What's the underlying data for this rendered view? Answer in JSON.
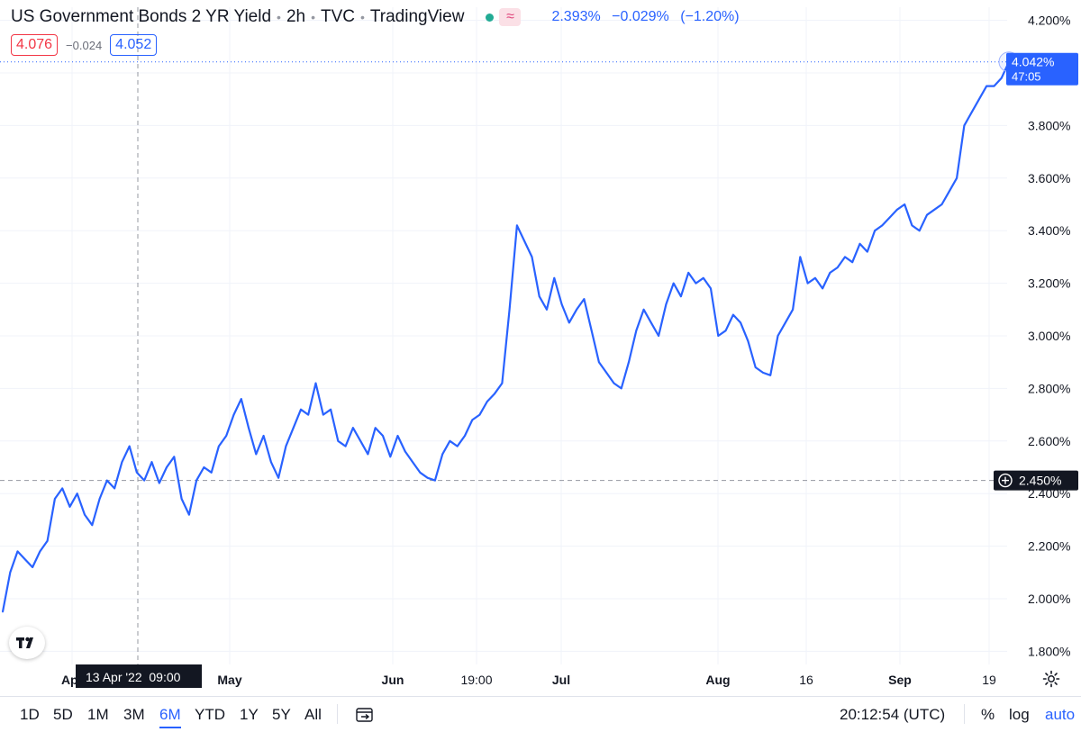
{
  "header": {
    "title": "US Government Bonds 2 YR Yield",
    "interval": "2h",
    "source": "TVC",
    "platform": "TradingView",
    "badge_glyph": "≈",
    "last": "2.393%",
    "change": "−0.029%",
    "change_pct": "(−1.20%)"
  },
  "bidask": {
    "bid": "4.076",
    "spread": "−0.024",
    "ask": "4.052"
  },
  "colors": {
    "line": "#2962ff",
    "bid": "#f23645",
    "up": "#22ab94",
    "grid": "#f0f3fa",
    "badge": "#131722"
  },
  "chart_data": {
    "type": "line",
    "series": [
      {
        "values": [
          1.95,
          2.1,
          2.18,
          2.15,
          2.12,
          2.18,
          2.22,
          2.38,
          2.42,
          2.35,
          2.4,
          2.32,
          2.28,
          2.38,
          2.45,
          2.42,
          2.52,
          2.58,
          2.48,
          2.45,
          2.52,
          2.44,
          2.5,
          2.54,
          2.38,
          2.32,
          2.45,
          2.5,
          2.48,
          2.58,
          2.62,
          2.7,
          2.76,
          2.65,
          2.55,
          2.62,
          2.52,
          2.46,
          2.58,
          2.65,
          2.72,
          2.7,
          2.82,
          2.7,
          2.72,
          2.6,
          2.58,
          2.65,
          2.6,
          2.55,
          2.65,
          2.62,
          2.54,
          2.62,
          2.56,
          2.52,
          2.48,
          2.46,
          2.45,
          2.55,
          2.6,
          2.58,
          2.62,
          2.68,
          2.7,
          2.75,
          2.78,
          2.82,
          3.1,
          3.42,
          3.36,
          3.3,
          3.15,
          3.1,
          3.22,
          3.12,
          3.05,
          3.1,
          3.14,
          3.02,
          2.9,
          2.86,
          2.82,
          2.8,
          2.9,
          3.02,
          3.1,
          3.05,
          3.0,
          3.12,
          3.2,
          3.15,
          3.24,
          3.2,
          3.22,
          3.18,
          3.0,
          3.02,
          3.08,
          3.05,
          2.98,
          2.88,
          2.86,
          2.85,
          3.0,
          3.05,
          3.1,
          3.3,
          3.2,
          3.22,
          3.18,
          3.24,
          3.26,
          3.3,
          3.28,
          3.35,
          3.32,
          3.4,
          3.42,
          3.45,
          3.48,
          3.5,
          3.42,
          3.4,
          3.46,
          3.48,
          3.5,
          3.55,
          3.6,
          3.8,
          3.85,
          3.9,
          3.95,
          3.95,
          3.98,
          4.042
        ]
      }
    ],
    "x_labels": [
      "Apr",
      "May",
      "Jun",
      "19:00",
      "Jul",
      "Aug",
      "16",
      "Sep",
      "19"
    ],
    "y_ticks": [
      "1.800%",
      "2.000%",
      "2.200%",
      "2.400%",
      "2.600%",
      "2.800%",
      "3.000%",
      "3.200%",
      "3.400%",
      "3.600%",
      "3.800%",
      "4.000%",
      "4.200%"
    ],
    "ylim": [
      1.75,
      4.25
    ],
    "current_price": {
      "value": "4.042%",
      "countdown": "47:05"
    },
    "crosshair": {
      "y_value": 2.45,
      "price_label": "2.450%",
      "time_label": "13 Apr '22  09:00"
    },
    "grid": true
  },
  "toolbar": {
    "ranges": [
      "1D",
      "5D",
      "1M",
      "3M",
      "6M",
      "YTD",
      "1Y",
      "5Y",
      "All"
    ],
    "active_range": "6M",
    "clock": "20:12:54 (UTC)",
    "percent": "%",
    "log": "log",
    "auto": "auto"
  },
  "icons": {
    "logo": "tradingview-logo-icon",
    "compare": "date-range-icon",
    "settings": "gear-icon",
    "crosshair": "plus-circle-icon"
  }
}
